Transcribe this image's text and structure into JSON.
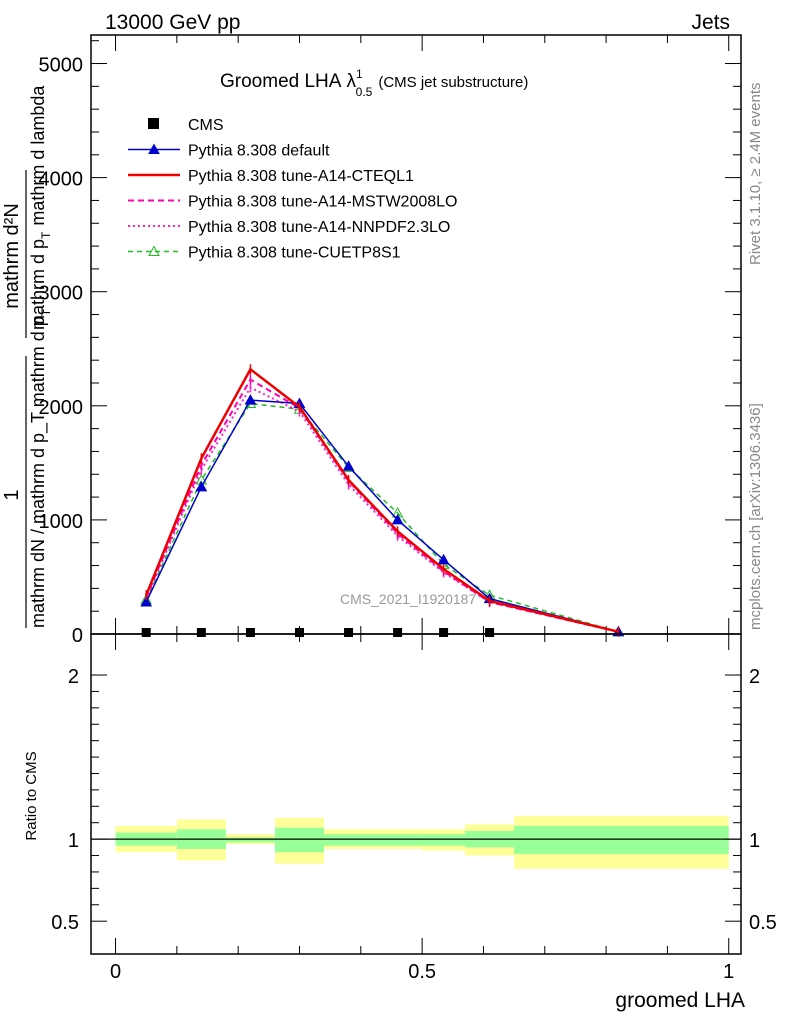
{
  "header": {
    "left": "13000 GeV pp",
    "right": "Jets",
    "side_top": "Rivet 3.1.10, ≥ 2.4M events",
    "side_bottom": "mcplots.cern.ch [arXiv:1306.3436]",
    "watermark": "CMS_2021_I1920187"
  },
  "chart_data": [
    {
      "type": "line",
      "title_main": "Groomed LHA",
      "title_lambda": "λ",
      "title_sup": "1",
      "title_sub": "0.5",
      "title_note": "(CMS jet substructure)",
      "ylabel_numer_1": "1",
      "ylabel_denom_1": "mathrm dN / mathrm d p_T mathrm d p",
      "ylabel_denom_1_sub": "T",
      "ylabel_numer_2": "mathrm d²N",
      "ylabel_denom_2": "mathrm d p",
      "ylabel_denom_2_sub": "T",
      "ylabel_denom_2_tail": "mathrm d lambda",
      "xlim": [
        -0.04,
        1.02
      ],
      "ylim": [
        0,
        5250
      ],
      "yticks": [
        0,
        1000,
        2000,
        3000,
        4000,
        5000
      ],
      "ytick_labels": [
        "0",
        "1000",
        "2000",
        "3000",
        "4000",
        "5000"
      ],
      "x": [
        0.05,
        0.14,
        0.22,
        0.3,
        0.38,
        0.46,
        0.535,
        0.61,
        0.82
      ],
      "series": [
        {
          "name": "CMS",
          "color": "#000000",
          "style": "points",
          "values": [
            0,
            0,
            0,
            0,
            0,
            0,
            0,
            0,
            null
          ]
        },
        {
          "name": "Pythia 8.308 default",
          "color": "#0000cc",
          "style": "solid-triangle",
          "values": [
            280,
            1290,
            2050,
            2020,
            1470,
            1000,
            650,
            310,
            20
          ]
        },
        {
          "name": "Pythia 8.308 tune-A14-CTEQL1",
          "color": "#ee0000",
          "style": "thick-solid",
          "values": [
            340,
            1540,
            2320,
            1990,
            1350,
            900,
            570,
            290,
            20
          ]
        },
        {
          "name": "Pythia 8.308 tune-A14-MSTW2008LO",
          "color": "#ff00aa",
          "style": "dashed",
          "values": [
            320,
            1480,
            2230,
            1980,
            1340,
            880,
            550,
            280,
            20
          ]
        },
        {
          "name": "Pythia 8.308 tune-A14-NNPDF2.3LO",
          "color": "#ff22cc",
          "style": "dotted",
          "values": [
            310,
            1440,
            2160,
            1950,
            1310,
            860,
            540,
            280,
            20
          ]
        },
        {
          "name": "Pythia 8.308 tune-CUETP8S1",
          "color": "#22bb22",
          "style": "dashed-open-triangle",
          "values": [
            300,
            1350,
            2020,
            1970,
            1460,
            1060,
            610,
            340,
            20
          ]
        }
      ]
    },
    {
      "type": "area",
      "ylabel": "Ratio to CMS",
      "xlabel": "groomed LHA",
      "xlim": [
        -0.04,
        1.02
      ],
      "ylim": [
        0.3,
        2.25
      ],
      "yticks": [
        0.5,
        1,
        2
      ],
      "ytick_labels": [
        "0.5",
        "1",
        "2"
      ],
      "xticks": [
        0,
        0.5,
        1
      ],
      "xtick_labels": [
        "0",
        "0.5",
        "1"
      ],
      "reference": 1,
      "bins": [
        {
          "lo": 0.0,
          "hi": 0.1,
          "in_lo": 0.96,
          "in_hi": 1.04,
          "out_lo": 0.92,
          "out_hi": 1.08
        },
        {
          "lo": 0.1,
          "hi": 0.18,
          "in_lo": 0.94,
          "in_hi": 1.06,
          "out_lo": 0.87,
          "out_hi": 1.12
        },
        {
          "lo": 0.18,
          "hi": 0.26,
          "in_lo": 0.98,
          "in_hi": 1.01,
          "out_lo": 0.97,
          "out_hi": 1.03
        },
        {
          "lo": 0.26,
          "hi": 0.34,
          "in_lo": 0.92,
          "in_hi": 1.07,
          "out_lo": 0.85,
          "out_hi": 1.13
        },
        {
          "lo": 0.34,
          "hi": 0.42,
          "in_lo": 0.96,
          "in_hi": 1.03,
          "out_lo": 0.94,
          "out_hi": 1.06
        },
        {
          "lo": 0.42,
          "hi": 0.5,
          "in_lo": 0.96,
          "in_hi": 1.03,
          "out_lo": 0.94,
          "out_hi": 1.06
        },
        {
          "lo": 0.5,
          "hi": 0.57,
          "in_lo": 0.96,
          "in_hi": 1.03,
          "out_lo": 0.93,
          "out_hi": 1.06
        },
        {
          "lo": 0.57,
          "hi": 0.65,
          "in_lo": 0.95,
          "in_hi": 1.05,
          "out_lo": 0.9,
          "out_hi": 1.09
        },
        {
          "lo": 0.65,
          "hi": 1.0,
          "in_lo": 0.91,
          "in_hi": 1.08,
          "out_lo": 0.82,
          "out_hi": 1.14
        }
      ]
    }
  ],
  "colors": {
    "band_inner": "#99ff99",
    "band_outer": "#ffff99",
    "side_text": "#888888"
  }
}
